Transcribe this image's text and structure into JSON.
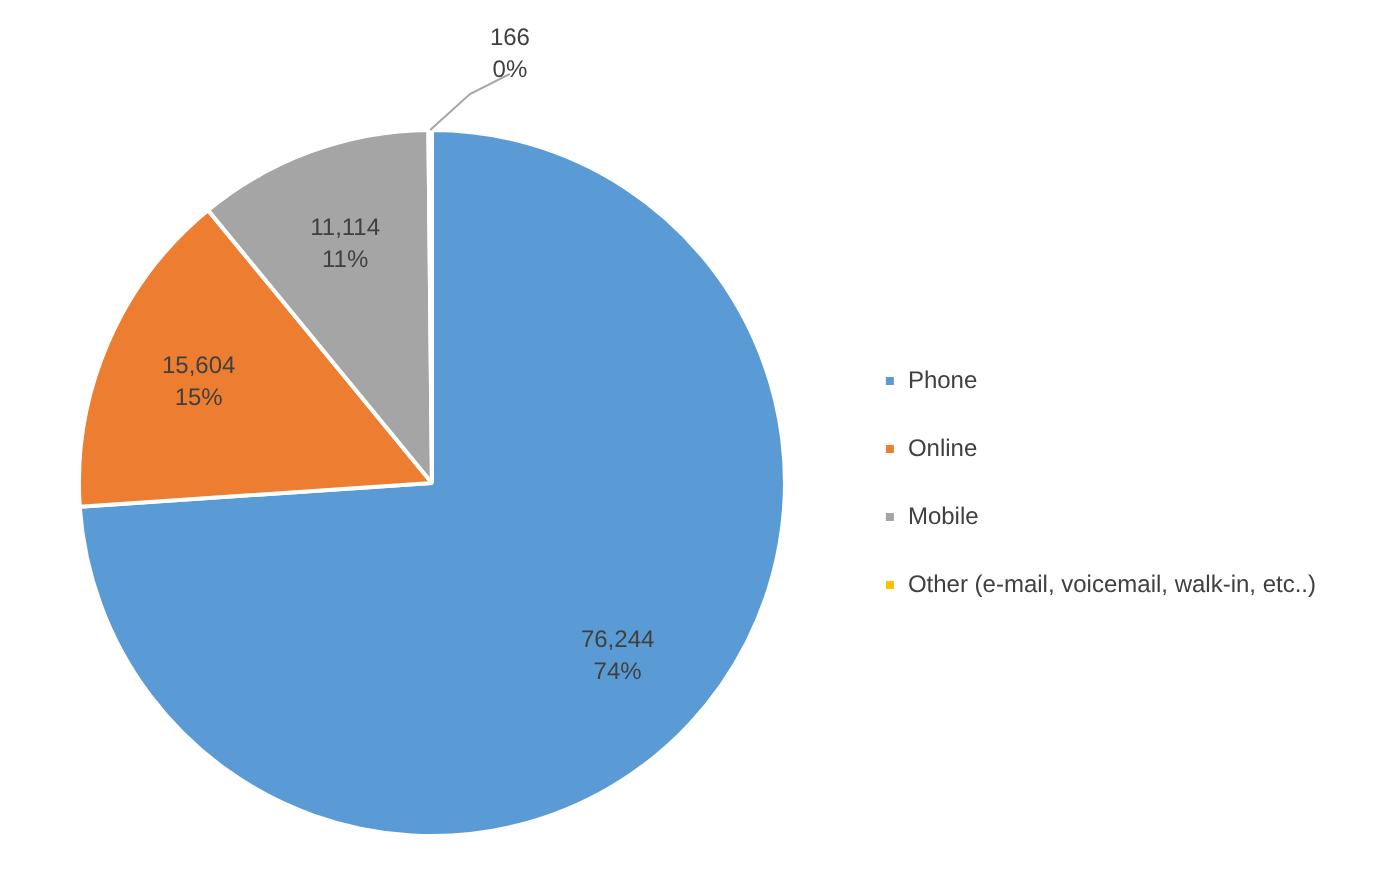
{
  "chart_data": {
    "type": "pie",
    "categories": [
      "Phone",
      "Online",
      "Mobile",
      "Other (e-mail, voicemail, walk-in, etc..)"
    ],
    "values": [
      76244,
      15604,
      11114,
      166
    ],
    "colors": [
      "#5b9bd5",
      "#ed7d31",
      "#a5a5a5",
      "#ffc000"
    ],
    "value_labels": [
      "76,244\n74%",
      "15,604\n15%",
      "11,114\n11%",
      "166\n0%"
    ],
    "legend": "right"
  }
}
